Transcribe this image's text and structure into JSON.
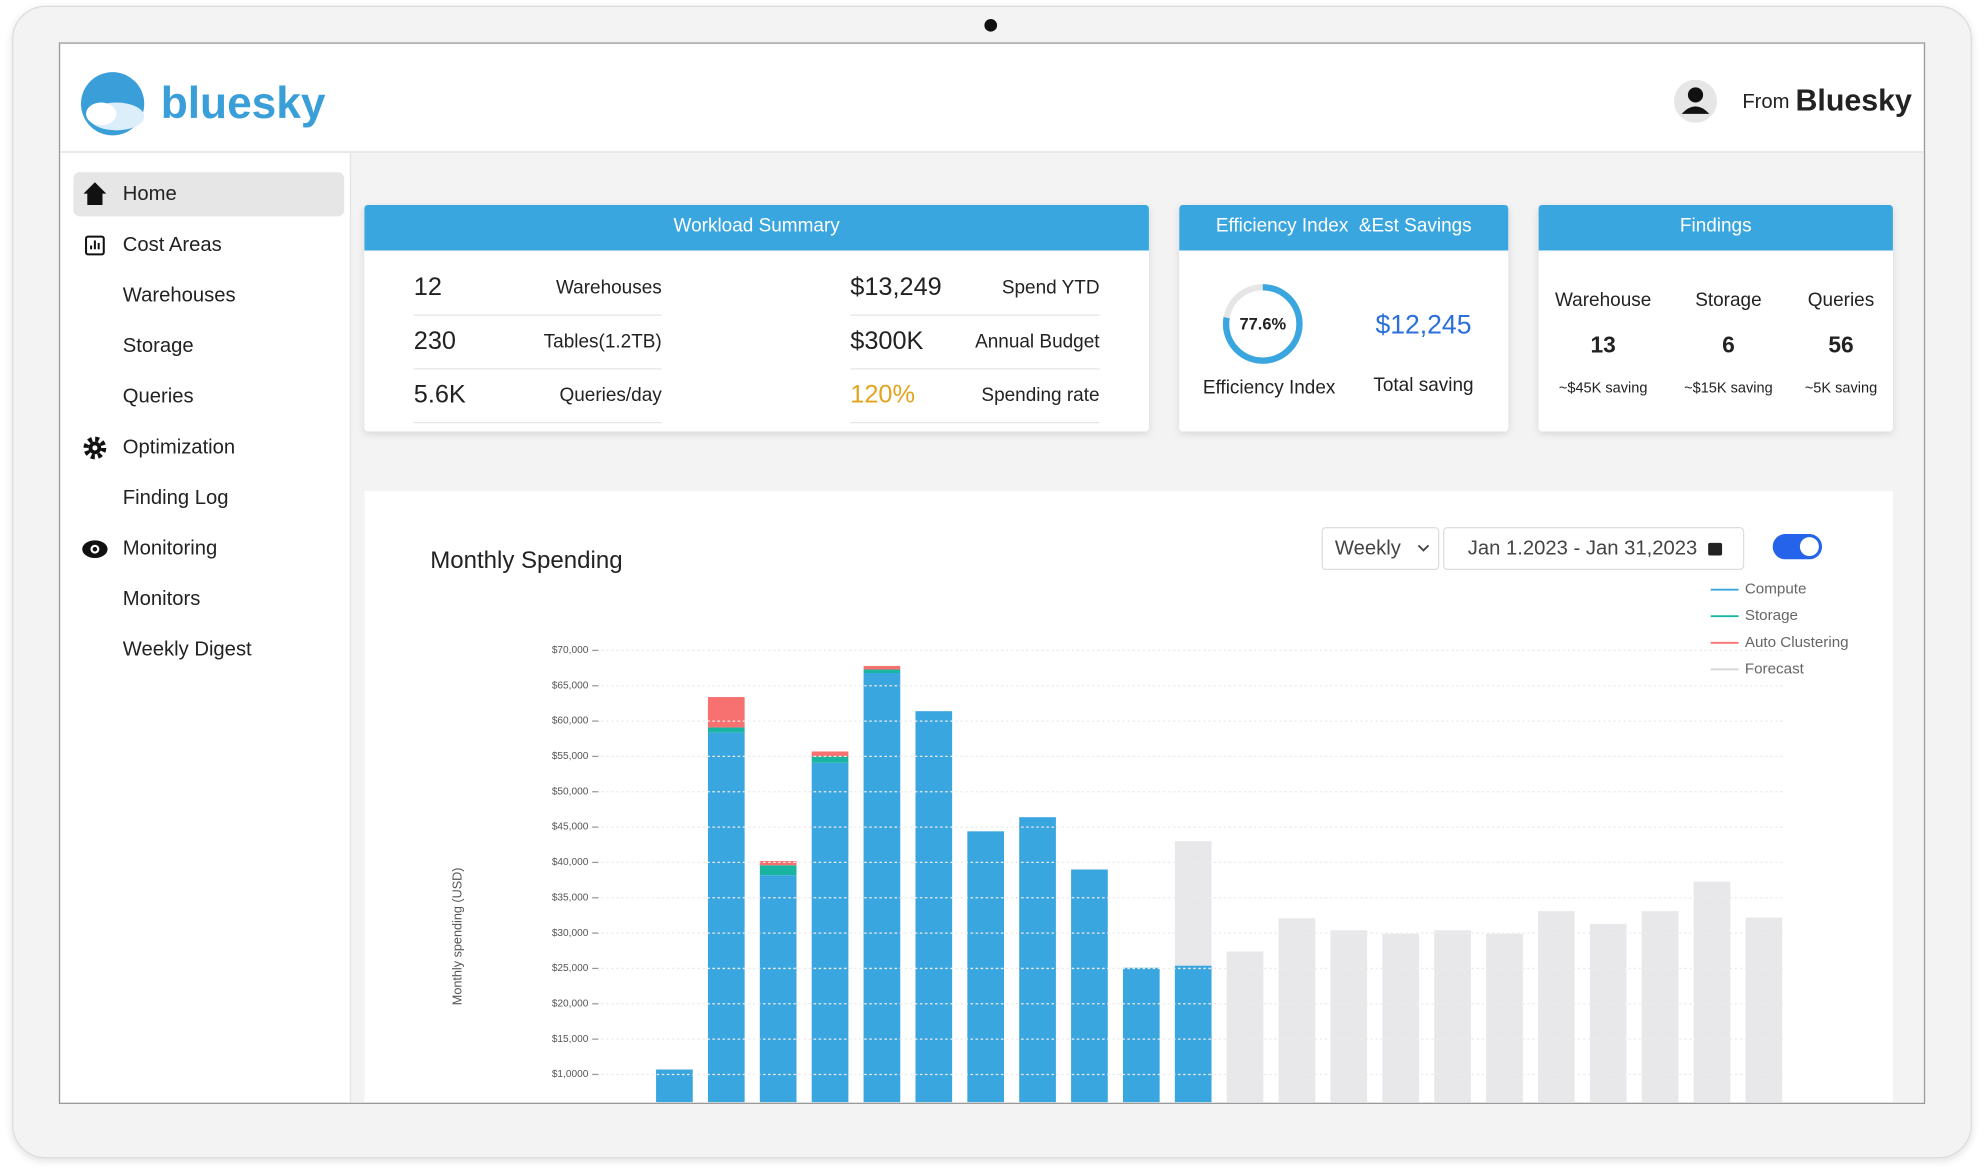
{
  "header": {
    "logo": "bluesky",
    "user_prefix": "From",
    "user_name": "Bluesky"
  },
  "sidebar": [
    "Home",
    "Cost Areas",
    "Warehouses",
    "Storage",
    "Queries",
    "Optimization",
    "Finding Log",
    "Monitoring",
    "Monitors",
    "Weekly Digest"
  ],
  "workload_summary": {
    "title": "Workload Summary",
    "rows": [
      [
        "12",
        "Warehouses",
        "$13,249",
        "Spend YTD"
      ],
      [
        "230",
        "Tables(1.2TB)",
        "$300K",
        "Annual Budget"
      ],
      [
        "5.6K",
        "Queries/day",
        "120%",
        "Spending rate"
      ]
    ]
  },
  "efficiency": {
    "title": "Efficiency Index  &Est Savings",
    "index": {
      "value": 77.6,
      "label": "77.6%"
    },
    "index_label": "Efficiency Index",
    "saving": "$12,245",
    "saving_label": "Total saving"
  },
  "findings": {
    "title": "Findings",
    "items": [
      {
        "name": "Warehouse",
        "count": "13",
        "saving": "~$45K saving"
      },
      {
        "name": "Storage",
        "count": "6",
        "saving": "~$15K saving"
      },
      {
        "name": "Queries",
        "count": "56",
        "saving": "~5K saving"
      }
    ]
  },
  "chart_controls": {
    "interval": "Weekly",
    "date_range": "Jan 1.2023 - Jan 31,2023"
  },
  "chart_data": {
    "type": "bar",
    "stacked": true,
    "title": "Monthly Spending",
    "y_label": "Monthly spending (USD)",
    "categories": [
      null,
      null,
      null,
      null,
      null,
      null,
      null,
      null,
      null,
      null,
      null,
      null,
      null,
      null,
      null,
      null,
      null,
      null,
      null,
      null,
      null,
      null
    ],
    "series": [
      {
        "name": "Compute",
        "color": "#3aa6e0",
        "values": [
          10700,
          58400,
          38200,
          54100,
          66800,
          61400,
          44400,
          46400,
          39000,
          25100,
          25400,
          null,
          null,
          null,
          null,
          null,
          null,
          null,
          null,
          null,
          null,
          null
        ]
      },
      {
        "name": "Storage",
        "color": "#1ab5a0",
        "values": [
          null,
          700,
          1400,
          900,
          500,
          null,
          null,
          null,
          null,
          null,
          null,
          null,
          null,
          null,
          null,
          null,
          null,
          null,
          null,
          null,
          null,
          null
        ]
      },
      {
        "name": "Auto Clustering",
        "color": "#f87171",
        "values": [
          null,
          4300,
          600,
          700,
          500,
          null,
          null,
          null,
          null,
          null,
          null,
          null,
          null,
          null,
          null,
          null,
          null,
          null,
          null,
          null,
          null,
          null
        ]
      },
      {
        "name": "Forecast",
        "color": "#e8e8ea",
        "values": [
          null,
          null,
          null,
          null,
          null,
          null,
          null,
          null,
          null,
          null,
          17600,
          27400,
          32100,
          30400,
          29900,
          30400,
          29900,
          33100,
          31300,
          33100,
          37300,
          32200
        ]
      }
    ],
    "ylim": [
      0,
      70000
    ],
    "yticks": [
      {
        "value": 10000,
        "label": "$1,0000"
      },
      {
        "value": 15000,
        "label": "$15,000"
      },
      {
        "value": 20000,
        "label": "$20,000"
      },
      {
        "value": 25000,
        "label": "$25,000"
      },
      {
        "value": 30000,
        "label": "$30,000"
      },
      {
        "value": 35000,
        "label": "$35,000"
      },
      {
        "value": 40000,
        "label": "$40,000"
      },
      {
        "value": 45000,
        "label": "$45,000"
      },
      {
        "value": 50000,
        "label": "$50,000"
      },
      {
        "value": 55000,
        "label": "$55,000"
      },
      {
        "value": 60000,
        "label": "$60,000"
      },
      {
        "value": 65000,
        "label": "$65,000"
      },
      {
        "value": 70000,
        "label": "$70,000"
      }
    ],
    "grid": true,
    "legend": "top-right"
  }
}
